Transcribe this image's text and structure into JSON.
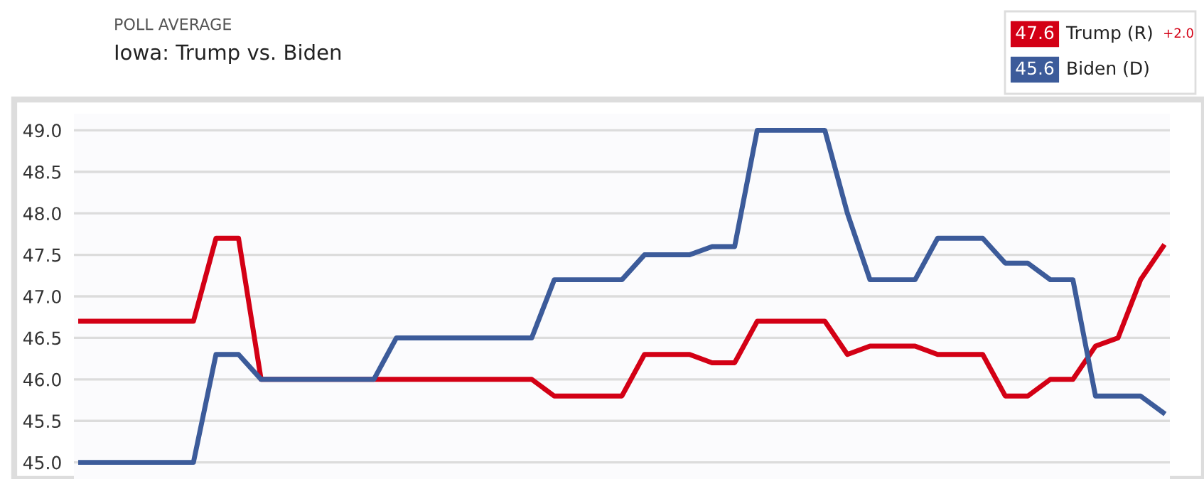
{
  "chart_data": {
    "type": "line",
    "subtitle": "POLL AVERAGE",
    "title": "Iowa: Trump vs. Biden",
    "categories": [
      null,
      null,
      null,
      null,
      null,
      null,
      null,
      null,
      null,
      null,
      null,
      null,
      null,
      null,
      null,
      null,
      null,
      null,
      null,
      null,
      null,
      null,
      null,
      null,
      null,
      null,
      null,
      null,
      null,
      null,
      null,
      null,
      null,
      null,
      null,
      null,
      null,
      null,
      null,
      null,
      null,
      null,
      null,
      null,
      null,
      null,
      null,
      null,
      null
    ],
    "series": [
      {
        "name": "Trump (R)",
        "color": "#d30015",
        "values": [
          46.7,
          46.7,
          46.7,
          46.7,
          46.7,
          46.7,
          47.7,
          47.7,
          46.0,
          46.0,
          46.0,
          46.0,
          46.0,
          46.0,
          46.0,
          46.0,
          46.0,
          46.0,
          46.0,
          46.0,
          46.0,
          45.8,
          45.8,
          45.8,
          45.8,
          46.3,
          46.3,
          46.3,
          46.2,
          46.2,
          46.7,
          46.7,
          46.7,
          46.7,
          46.3,
          46.4,
          46.4,
          46.4,
          46.3,
          46.3,
          46.3,
          45.8,
          45.8,
          46.0,
          46.0,
          46.4,
          46.5,
          47.2,
          47.6
        ]
      },
      {
        "name": "Biden (D)",
        "color": "#3c5b9a",
        "values": [
          45.0,
          45.0,
          45.0,
          45.0,
          45.0,
          45.0,
          46.3,
          46.3,
          46.0,
          46.0,
          46.0,
          46.0,
          46.0,
          46.0,
          46.5,
          46.5,
          46.5,
          46.5,
          46.5,
          46.5,
          46.5,
          47.2,
          47.2,
          47.2,
          47.2,
          47.5,
          47.5,
          47.5,
          47.6,
          47.6,
          49.0,
          49.0,
          49.0,
          49.0,
          48.0,
          47.2,
          47.2,
          47.2,
          47.7,
          47.7,
          47.7,
          47.4,
          47.4,
          47.2,
          47.2,
          45.8,
          45.8,
          45.8,
          45.6
        ]
      }
    ],
    "annotations": [
      "47.6",
      "45.6",
      "+2.0"
    ],
    "ylim": [
      44.8,
      49.2
    ],
    "yticks": [
      {
        "value": 45,
        "label": "45.0"
      },
      {
        "value": 45.5,
        "label": "45.5"
      },
      {
        "value": 46,
        "label": "46.0"
      },
      {
        "value": 46.5,
        "label": "46.5"
      },
      {
        "value": 47,
        "label": "47.0"
      },
      {
        "value": 47.5,
        "label": "47.5"
      },
      {
        "value": 48,
        "label": "48.0"
      },
      {
        "value": 48.5,
        "label": "48.5"
      },
      {
        "value": 49,
        "label": "49.0"
      }
    ],
    "grid": "y",
    "legend": "top right",
    "marker": "none",
    "line_style": "solid"
  }
}
